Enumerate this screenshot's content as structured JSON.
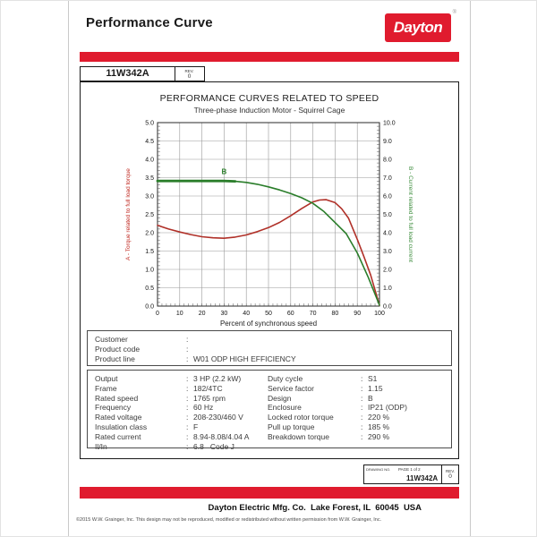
{
  "ui": {
    "separator": ":"
  },
  "colors": {
    "brand_red": "#e01b2e",
    "torque_red": "#b03028",
    "current_green": "#2a7d2a",
    "grid_gray": "#999999"
  },
  "header": {
    "title": "Performance Curve",
    "logo_text": "Dayton",
    "registered_mark": "®"
  },
  "part_box": {
    "part_number": "11W342A",
    "rev_label": "REV.",
    "rev_value": "0"
  },
  "chart_data": {
    "type": "line",
    "title": "PERFORMANCE CURVES RELATED TO SPEED",
    "subtitle": "Three-phase Induction Motor - Squirrel Cage",
    "xlabel": "Percent of synchronous speed",
    "grid": true,
    "x_range": [
      0,
      100
    ],
    "x_ticks": [
      0,
      10,
      20,
      30,
      40,
      50,
      60,
      70,
      80,
      90,
      100
    ],
    "left_axis": {
      "label": "A - Torque related to full load torque",
      "color": "#c02820",
      "range": [
        0,
        5
      ],
      "tick_step": 0.5,
      "ticks": [
        "0.0",
        "0.5",
        "1.0",
        "1.5",
        "2.0",
        "2.5",
        "3.0",
        "3.5",
        "4.0",
        "4.5",
        "5.0"
      ]
    },
    "right_axis": {
      "label": "B - Current related to full load current",
      "color": "#3c8c3c",
      "range": [
        0,
        10
      ],
      "tick_step": 1,
      "ticks": [
        "0.0",
        "1.0",
        "2.0",
        "3.0",
        "4.0",
        "5.0",
        "6.0",
        "7.0",
        "8.0",
        "9.0",
        "10.0"
      ]
    },
    "series": [
      {
        "id": "torque-curve",
        "name": "A - Torque related to full load torque",
        "axis": "left",
        "color": "#b03028",
        "width": 1.6,
        "points": [
          [
            0,
            2.2
          ],
          [
            5,
            2.1
          ],
          [
            10,
            2.02
          ],
          [
            15,
            1.95
          ],
          [
            20,
            1.89
          ],
          [
            25,
            1.86
          ],
          [
            30,
            1.85
          ],
          [
            35,
            1.88
          ],
          [
            40,
            1.94
          ],
          [
            45,
            2.03
          ],
          [
            50,
            2.14
          ],
          [
            55,
            2.28
          ],
          [
            60,
            2.46
          ],
          [
            65,
            2.66
          ],
          [
            70,
            2.84
          ],
          [
            73,
            2.89
          ],
          [
            76,
            2.9
          ],
          [
            80,
            2.82
          ],
          [
            83,
            2.65
          ],
          [
            86,
            2.4
          ],
          [
            90,
            1.82
          ],
          [
            93,
            1.35
          ],
          [
            96,
            0.85
          ],
          [
            100,
            0.02
          ]
        ]
      },
      {
        "id": "current-curve",
        "name": "B - Current related to full load current",
        "axis": "right",
        "color": "#2a7d2a",
        "width": 1.6,
        "bold_until_x": 37,
        "label_marker": {
          "text": "B",
          "x": 30,
          "y": 7.2
        },
        "points": [
          [
            0,
            6.82
          ],
          [
            10,
            6.82
          ],
          [
            20,
            6.82
          ],
          [
            30,
            6.82
          ],
          [
            35,
            6.8
          ],
          [
            40,
            6.74
          ],
          [
            45,
            6.64
          ],
          [
            50,
            6.5
          ],
          [
            55,
            6.33
          ],
          [
            60,
            6.13
          ],
          [
            65,
            5.9
          ],
          [
            70,
            5.6
          ],
          [
            75,
            5.15
          ],
          [
            80,
            4.55
          ],
          [
            85,
            3.95
          ],
          [
            90,
            2.9
          ],
          [
            95,
            1.55
          ],
          [
            100,
            0.05
          ]
        ]
      }
    ]
  },
  "customer_info": {
    "rows": [
      {
        "label": "Customer",
        "value": ""
      },
      {
        "label": "Product code",
        "value": ""
      },
      {
        "label": "Product line",
        "value": "W01 ODP HIGH EFFICIENCY"
      }
    ]
  },
  "specs": {
    "left": [
      {
        "label": "Output",
        "value": "3 HP (2.2 kW)"
      },
      {
        "label": "Frame",
        "value": "182/4TC"
      },
      {
        "label": "Rated speed",
        "value": "1765 rpm"
      },
      {
        "label": "Frequency",
        "value": "60 Hz"
      },
      {
        "label": "Rated voltage",
        "value": "208-230/460 V"
      },
      {
        "label": "Insulation class",
        "value": "F"
      },
      {
        "label": "Rated current",
        "value": "8.94-8.08/4.04 A"
      },
      {
        "label": "Il/In",
        "value": "6.8   Code J"
      }
    ],
    "right": [
      {
        "label": "Duty cycle",
        "value": "S1"
      },
      {
        "label": "Service factor",
        "value": "1.15"
      },
      {
        "label": "Design",
        "value": "B"
      },
      {
        "label": "Enclosure",
        "value": "IP21 (ODP)"
      },
      {
        "label": "Locked rotor torque",
        "value": "220 %"
      },
      {
        "label": "Pull up torque",
        "value": "185 %"
      },
      {
        "label": "Breakdown torque",
        "value": "290 %"
      }
    ]
  },
  "drawing_box": {
    "drawing_no_label": "DRAWING NO.",
    "page_label": "PAGE 1 of 2",
    "part_number": "11W342A",
    "rev_label": "REV.",
    "rev_value": "0"
  },
  "footer": {
    "address": "Dayton Electric Mfg. Co.  Lake Forest, IL  60045  USA",
    "copyright": "©2015 W.W. Grainger, Inc.    This design may not be reproduced, modified or redistributed without written permission from W.W. Grainger, Inc."
  }
}
